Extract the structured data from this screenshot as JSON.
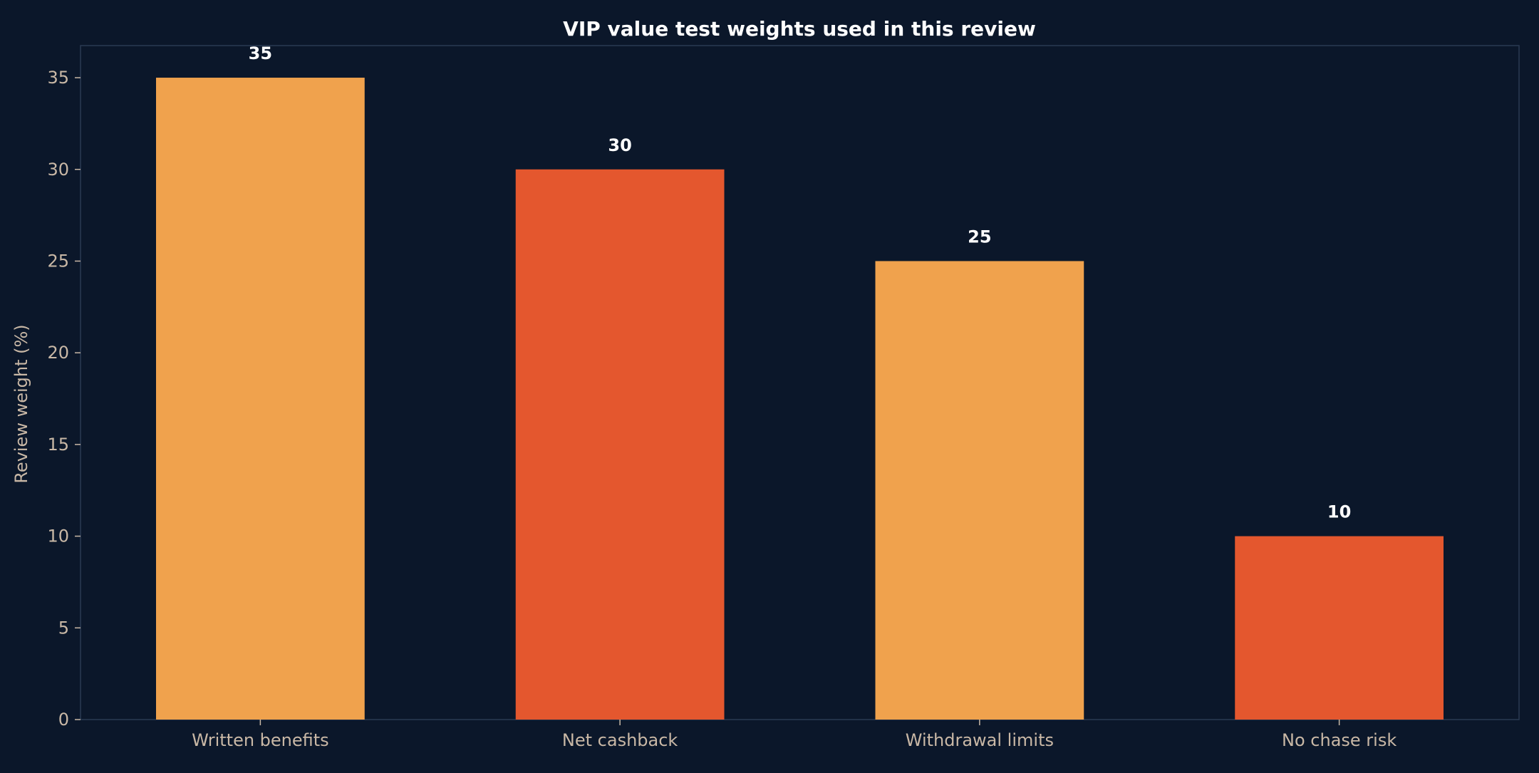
{
  "chart_data": {
    "type": "bar",
    "title": "VIP value test weights used in this review",
    "xlabel": "",
    "ylabel": "Review weight (%)",
    "categories": [
      "Written benefits",
      "Net cashback",
      "Withdrawal limits",
      "No chase risk"
    ],
    "values": [
      35,
      30,
      25,
      10
    ],
    "value_labels": [
      "35",
      "30",
      "25",
      "10"
    ],
    "y_ticks": [
      0,
      5,
      10,
      15,
      20,
      25,
      30,
      35
    ],
    "ylim": [
      0,
      36.75
    ],
    "grid": false,
    "legend": "none",
    "colors": {
      "background": "#0b172a",
      "bar_odd": "#f0a24d",
      "bar_even": "#e4572e",
      "frame": "#2a3a52",
      "tick_text": "#c9b8a6",
      "title_text": "#ffffff",
      "value_text": "#ffffff"
    }
  }
}
